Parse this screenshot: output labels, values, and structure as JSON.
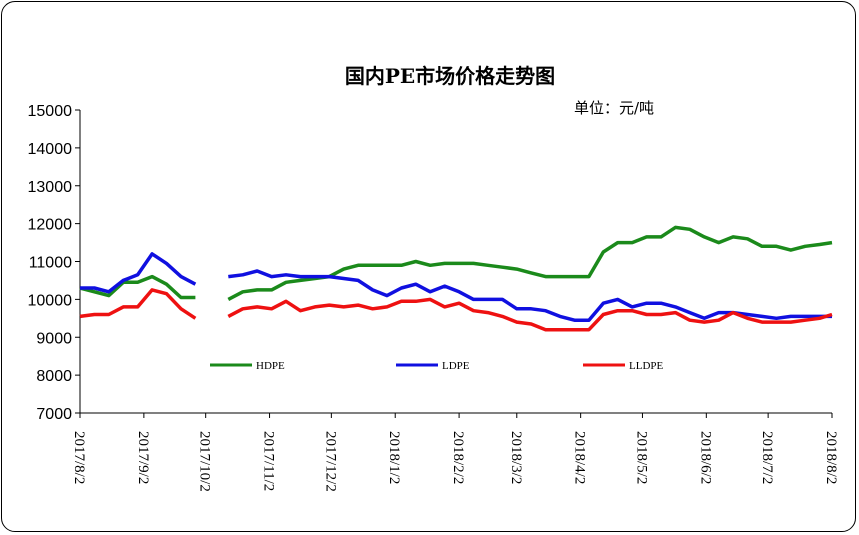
{
  "chart_data": {
    "type": "line",
    "title": "国内PE市场价格走势图",
    "unit_label": "单位：元/吨",
    "ylim": [
      7000,
      15000
    ],
    "y_ticks": [
      "7000",
      "8000",
      "9000",
      "10000",
      "11000",
      "12000",
      "13000",
      "14000",
      "15000"
    ],
    "x_ticks": [
      "2017/8/2",
      "2017/9/2",
      "2017/10/2",
      "2017/11/2",
      "2017/12/2",
      "2018/1/2",
      "2018/2/2",
      "2018/3/2",
      "2018/4/2",
      "2018/5/2",
      "2018/6/2",
      "2018/7/2",
      "2018/8/2"
    ],
    "grid": false,
    "legend_position": "bottom-inside",
    "series": [
      {
        "name": "HDPE",
        "color": "#1b8a1b",
        "segments": [
          [
            [
              "2017/8/2",
              10300
            ],
            [
              "2017/8/9",
              10200
            ],
            [
              "2017/8/16",
              10100
            ],
            [
              "2017/8/23",
              10450
            ],
            [
              "2017/8/30",
              10450
            ],
            [
              "2017/9/6",
              10600
            ],
            [
              "2017/9/13",
              10400
            ],
            [
              "2017/9/20",
              10050
            ],
            [
              "2017/9/27",
              10050
            ]
          ],
          [
            [
              "2017/10/13",
              10000
            ],
            [
              "2017/10/20",
              10200
            ],
            [
              "2017/10/27",
              10250
            ],
            [
              "2017/11/3",
              10250
            ],
            [
              "2017/11/10",
              10450
            ],
            [
              "2017/11/17",
              10500
            ],
            [
              "2017/11/24",
              10550
            ],
            [
              "2017/12/1",
              10600
            ],
            [
              "2017/12/8",
              10800
            ],
            [
              "2017/12/15",
              10900
            ],
            [
              "2017/12/22",
              10900
            ],
            [
              "2017/12/29",
              10900
            ],
            [
              "2018/1/5",
              10900
            ],
            [
              "2018/1/12",
              11000
            ],
            [
              "2018/1/19",
              10900
            ],
            [
              "2018/1/26",
              10950
            ],
            [
              "2018/2/2",
              10950
            ],
            [
              "2018/2/9",
              10950
            ],
            [
              "2018/2/16",
              10900
            ],
            [
              "2018/2/23",
              10850
            ],
            [
              "2018/3/2",
              10800
            ],
            [
              "2018/3/9",
              10700
            ],
            [
              "2018/3/16",
              10600
            ],
            [
              "2018/3/23",
              10600
            ],
            [
              "2018/3/30",
              10600
            ],
            [
              "2018/4/6",
              10600
            ],
            [
              "2018/4/13",
              11250
            ],
            [
              "2018/4/20",
              11500
            ],
            [
              "2018/4/27",
              11500
            ],
            [
              "2018/5/4",
              11650
            ],
            [
              "2018/5/11",
              11650
            ],
            [
              "2018/5/18",
              11900
            ],
            [
              "2018/5/25",
              11850
            ],
            [
              "2018/6/1",
              11650
            ],
            [
              "2018/6/8",
              11500
            ],
            [
              "2018/6/15",
              11650
            ],
            [
              "2018/6/22",
              11600
            ],
            [
              "2018/6/29",
              11400
            ],
            [
              "2018/7/6",
              11400
            ],
            [
              "2018/7/13",
              11300
            ],
            [
              "2018/7/20",
              11400
            ],
            [
              "2018/7/27",
              11450
            ],
            [
              "2018/8/2",
              11500
            ]
          ]
        ]
      },
      {
        "name": "LDPE",
        "color": "#1010e0",
        "segments": [
          [
            [
              "2017/8/2",
              10300
            ],
            [
              "2017/8/9",
              10300
            ],
            [
              "2017/8/16",
              10200
            ],
            [
              "2017/8/23",
              10500
            ],
            [
              "2017/8/30",
              10650
            ],
            [
              "2017/9/6",
              11200
            ],
            [
              "2017/9/13",
              10950
            ],
            [
              "2017/9/20",
              10600
            ],
            [
              "2017/9/27",
              10400
            ]
          ],
          [
            [
              "2017/10/13",
              10600
            ],
            [
              "2017/10/20",
              10650
            ],
            [
              "2017/10/27",
              10750
            ],
            [
              "2017/11/3",
              10600
            ],
            [
              "2017/11/10",
              10650
            ],
            [
              "2017/11/17",
              10600
            ],
            [
              "2017/11/24",
              10600
            ],
            [
              "2017/12/1",
              10600
            ],
            [
              "2017/12/8",
              10550
            ],
            [
              "2017/12/15",
              10500
            ],
            [
              "2017/12/22",
              10250
            ],
            [
              "2017/12/29",
              10100
            ],
            [
              "2018/1/5",
              10300
            ],
            [
              "2018/1/12",
              10400
            ],
            [
              "2018/1/19",
              10200
            ],
            [
              "2018/1/26",
              10350
            ],
            [
              "2018/2/2",
              10200
            ],
            [
              "2018/2/9",
              10000
            ],
            [
              "2018/2/16",
              10000
            ],
            [
              "2018/2/23",
              10000
            ],
            [
              "2018/3/2",
              9750
            ],
            [
              "2018/3/9",
              9750
            ],
            [
              "2018/3/16",
              9700
            ],
            [
              "2018/3/23",
              9550
            ],
            [
              "2018/3/30",
              9450
            ],
            [
              "2018/4/6",
              9450
            ],
            [
              "2018/4/13",
              9900
            ],
            [
              "2018/4/20",
              10000
            ],
            [
              "2018/4/27",
              9800
            ],
            [
              "2018/5/4",
              9900
            ],
            [
              "2018/5/11",
              9900
            ],
            [
              "2018/5/18",
              9800
            ],
            [
              "2018/5/25",
              9650
            ],
            [
              "2018/6/1",
              9500
            ],
            [
              "2018/6/8",
              9650
            ],
            [
              "2018/6/15",
              9650
            ],
            [
              "2018/6/22",
              9600
            ],
            [
              "2018/6/29",
              9550
            ],
            [
              "2018/7/6",
              9500
            ],
            [
              "2018/7/13",
              9550
            ],
            [
              "2018/7/20",
              9550
            ],
            [
              "2018/7/27",
              9550
            ],
            [
              "2018/8/2",
              9550
            ]
          ]
        ]
      },
      {
        "name": "LLDPE",
        "color": "#ee1111",
        "segments": [
          [
            [
              "2017/8/2",
              9550
            ],
            [
              "2017/8/9",
              9600
            ],
            [
              "2017/8/16",
              9600
            ],
            [
              "2017/8/23",
              9800
            ],
            [
              "2017/8/30",
              9800
            ],
            [
              "2017/9/6",
              10250
            ],
            [
              "2017/9/13",
              10150
            ],
            [
              "2017/9/20",
              9750
            ],
            [
              "2017/9/27",
              9500
            ]
          ],
          [
            [
              "2017/10/13",
              9550
            ],
            [
              "2017/10/20",
              9750
            ],
            [
              "2017/10/27",
              9800
            ],
            [
              "2017/11/3",
              9750
            ],
            [
              "2017/11/10",
              9950
            ],
            [
              "2017/11/17",
              9700
            ],
            [
              "2017/11/24",
              9800
            ],
            [
              "2017/12/1",
              9850
            ],
            [
              "2017/12/8",
              9800
            ],
            [
              "2017/12/15",
              9850
            ],
            [
              "2017/12/22",
              9750
            ],
            [
              "2017/12/29",
              9800
            ],
            [
              "2018/1/5",
              9950
            ],
            [
              "2018/1/12",
              9950
            ],
            [
              "2018/1/19",
              10000
            ],
            [
              "2018/1/26",
              9800
            ],
            [
              "2018/2/2",
              9900
            ],
            [
              "2018/2/9",
              9700
            ],
            [
              "2018/2/16",
              9650
            ],
            [
              "2018/2/23",
              9550
            ],
            [
              "2018/3/2",
              9400
            ],
            [
              "2018/3/9",
              9350
            ],
            [
              "2018/3/16",
              9200
            ],
            [
              "2018/3/23",
              9200
            ],
            [
              "2018/3/30",
              9200
            ],
            [
              "2018/4/6",
              9200
            ],
            [
              "2018/4/13",
              9600
            ],
            [
              "2018/4/20",
              9700
            ],
            [
              "2018/4/27",
              9700
            ],
            [
              "2018/5/4",
              9600
            ],
            [
              "2018/5/11",
              9600
            ],
            [
              "2018/5/18",
              9650
            ],
            [
              "2018/5/25",
              9450
            ],
            [
              "2018/6/1",
              9400
            ],
            [
              "2018/6/8",
              9450
            ],
            [
              "2018/6/15",
              9650
            ],
            [
              "2018/6/22",
              9500
            ],
            [
              "2018/6/29",
              9400
            ],
            [
              "2018/7/6",
              9400
            ],
            [
              "2018/7/13",
              9400
            ],
            [
              "2018/7/20",
              9450
            ],
            [
              "2018/7/27",
              9500
            ],
            [
              "2018/8/2",
              9600
            ]
          ]
        ]
      }
    ]
  }
}
